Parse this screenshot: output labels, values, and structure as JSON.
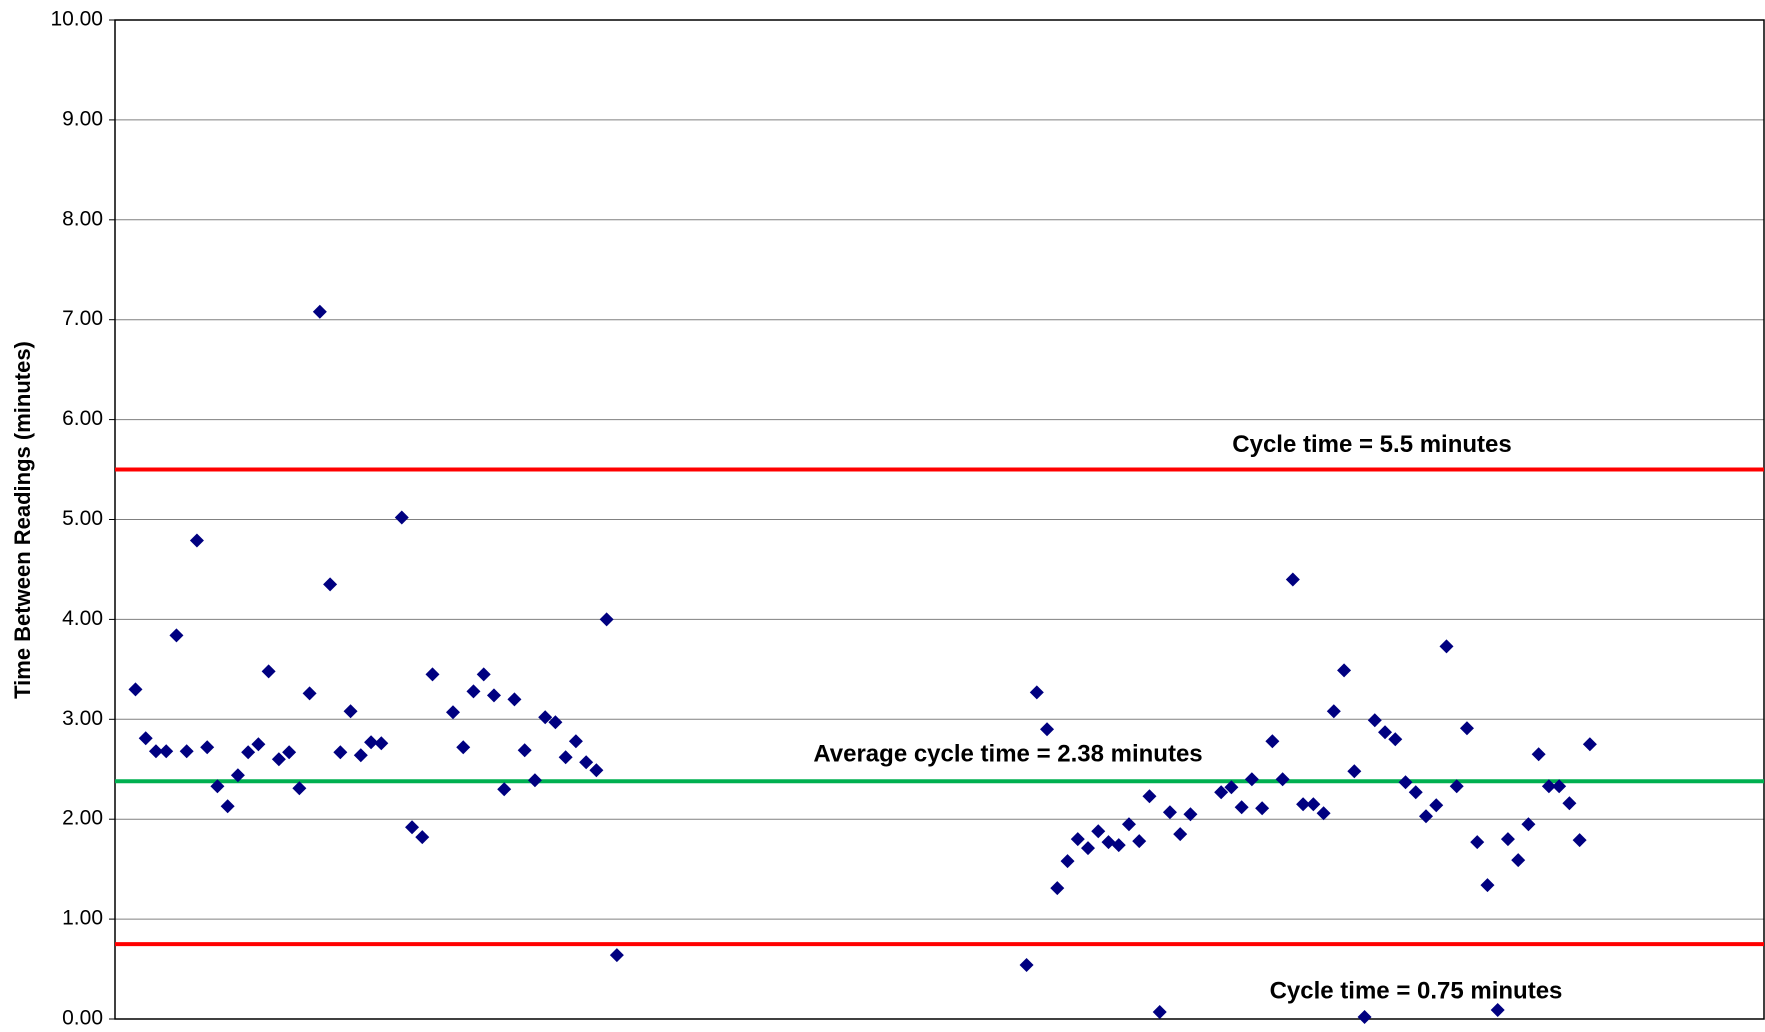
{
  "chart_data": {
    "type": "scatter",
    "ylabel": "Time Between Readings (minutes)",
    "color": "#000080",
    "grid": true,
    "xlim": [
      -1,
      160
    ],
    "ylim": [
      0,
      10
    ],
    "yticks": [
      {
        "value": 0,
        "label": "0.00"
      },
      {
        "value": 1,
        "label": "1.00"
      },
      {
        "value": 2,
        "label": "2.00"
      },
      {
        "value": 3,
        "label": "3.00"
      },
      {
        "value": 4,
        "label": "4.00"
      },
      {
        "value": 5,
        "label": "5.00"
      },
      {
        "value": 6,
        "label": "6.00"
      },
      {
        "value": 7,
        "label": "7.00"
      },
      {
        "value": 8,
        "label": "8.00"
      },
      {
        "value": 9,
        "label": "9.00"
      },
      {
        "value": 10,
        "label": "10.00"
      }
    ],
    "x": [
      1,
      2,
      3,
      4,
      5,
      6,
      7,
      8,
      9,
      10,
      11,
      12,
      13,
      14,
      15,
      16,
      17,
      18,
      19,
      20,
      21,
      22,
      23,
      24,
      25,
      27,
      28,
      29,
      30,
      32,
      33,
      34,
      35,
      36,
      37,
      38,
      39,
      40,
      41,
      42,
      43,
      44,
      45,
      46,
      47,
      48,
      88,
      89,
      90,
      91,
      92,
      93,
      94,
      95,
      96,
      97,
      98,
      99,
      100,
      101,
      102,
      103,
      104,
      107,
      108,
      109,
      110,
      111,
      112,
      113,
      114,
      115,
      116,
      117,
      118,
      119,
      120,
      121,
      122,
      123,
      124,
      125,
      126,
      127,
      128,
      129,
      130,
      131,
      132,
      133,
      134,
      135,
      136,
      137,
      138,
      139,
      140,
      141,
      142,
      143
    ],
    "values": [
      3.3,
      2.81,
      2.68,
      2.68,
      3.84,
      2.68,
      4.79,
      2.72,
      2.33,
      2.13,
      2.44,
      2.67,
      2.75,
      3.48,
      2.6,
      2.67,
      2.31,
      3.26,
      7.08,
      4.35,
      2.67,
      3.08,
      2.64,
      2.77,
      2.76,
      5.02,
      1.92,
      1.82,
      3.45,
      3.07,
      2.72,
      3.28,
      3.45,
      3.24,
      2.3,
      3.2,
      2.69,
      2.39,
      3.02,
      2.97,
      2.62,
      2.78,
      2.57,
      2.49,
      4.0,
      0.64,
      0.54,
      3.27,
      2.9,
      1.31,
      1.58,
      1.8,
      1.71,
      1.88,
      1.77,
      1.74,
      1.95,
      1.78,
      2.23,
      0.07,
      2.07,
      1.85,
      2.05,
      2.27,
      2.32,
      2.12,
      2.4,
      2.11,
      2.78,
      2.4,
      4.4,
      2.15,
      2.15,
      2.06,
      3.08,
      3.49,
      2.48,
      0.02,
      2.99,
      2.87,
      2.8,
      2.37,
      2.27,
      2.03,
      2.14,
      3.73,
      2.33,
      2.91,
      1.77,
      1.34,
      0.09,
      1.8,
      1.59,
      1.95,
      2.65,
      2.33,
      2.33,
      2.16,
      1.79,
      2.75
    ],
    "reference_lines": [
      {
        "value": 5.5,
        "color": "#ff0000",
        "label": "Cycle time = 5.5 minutes"
      },
      {
        "value": 2.38,
        "color": "#00b050",
        "label": "Average cycle time = 2.38 minutes"
      },
      {
        "value": 0.75,
        "color": "#ff0000",
        "label": "Cycle time =  0.75 minutes"
      }
    ]
  }
}
